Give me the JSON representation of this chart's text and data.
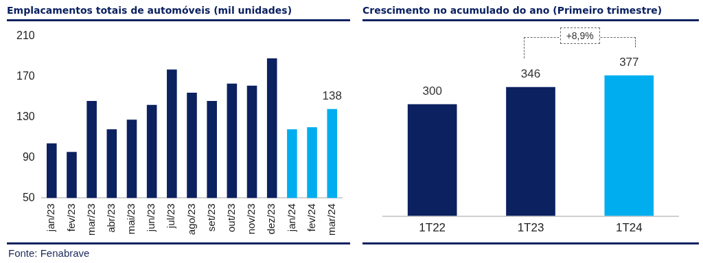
{
  "chart_data": [
    {
      "type": "bar",
      "title": "Emplacamentos totais de automóveis (mil unidades)",
      "categories": [
        "jan/23",
        "fev/23",
        "mar/23",
        "abr/23",
        "mai/23",
        "jun/23",
        "jul/23",
        "ago/23",
        "set/23",
        "out/23",
        "nov/23",
        "dez/23",
        "jan/24",
        "fev/24",
        "mar/24"
      ],
      "values": [
        104,
        95.5,
        146,
        118,
        127.5,
        142,
        177,
        154,
        146,
        163,
        161,
        188,
        118,
        120,
        138
      ],
      "colors": [
        "#0b2160",
        "#0b2160",
        "#0b2160",
        "#0b2160",
        "#0b2160",
        "#0b2160",
        "#0b2160",
        "#0b2160",
        "#0b2160",
        "#0b2160",
        "#0b2160",
        "#0b2160",
        "#00aeef",
        "#00aeef",
        "#00aeef"
      ],
      "value_labels": [
        null,
        null,
        null,
        null,
        null,
        null,
        null,
        null,
        null,
        null,
        null,
        null,
        null,
        null,
        "138"
      ],
      "ylim": [
        50,
        210
      ],
      "yticks": [
        50,
        90,
        130,
        170,
        210
      ],
      "grid": false,
      "annotations": [
        "Fonte: Fenabrave"
      ]
    },
    {
      "type": "bar",
      "title": "Crescimento no acumulado do ano (Primeiro trimestre)",
      "categories": [
        "1T22",
        "1T23",
        "1T24"
      ],
      "values": [
        300,
        346,
        377
      ],
      "colors": [
        "#0b2160",
        "#0b2160",
        "#00aeef"
      ],
      "data_labels": true,
      "grid": false,
      "annotations": [
        "+8,9%"
      ]
    }
  ]
}
